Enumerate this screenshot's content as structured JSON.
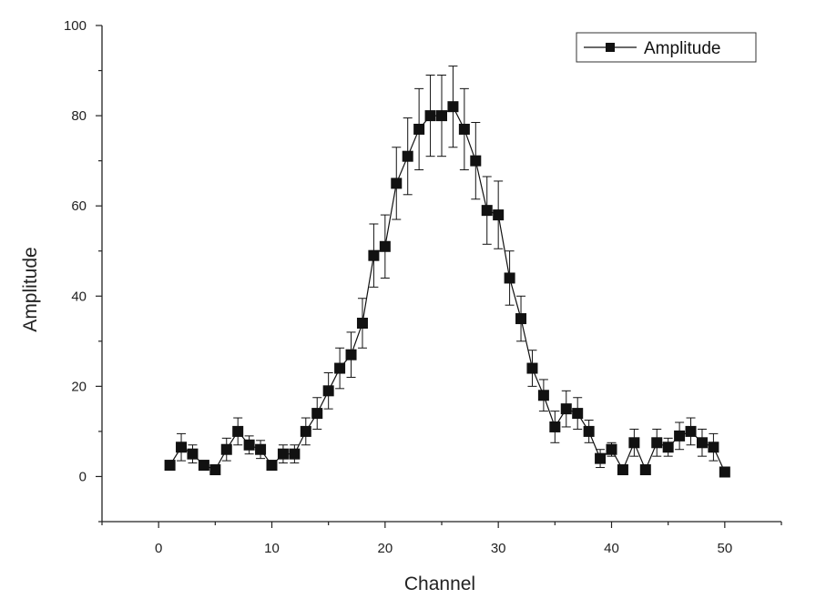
{
  "chart_data": {
    "type": "line",
    "title": "",
    "xlabel": "Channel",
    "ylabel": "Amplitude",
    "xlim": [
      -5,
      55
    ],
    "ylim": [
      -10,
      100
    ],
    "x_ticks": [
      0,
      10,
      20,
      30,
      40,
      50
    ],
    "y_ticks": [
      0,
      20,
      40,
      60,
      80,
      100
    ],
    "grid": false,
    "legend_position": "top-right",
    "marker": "square",
    "color": "#111111",
    "series": [
      {
        "name": "Amplitude",
        "x": [
          1,
          2,
          3,
          4,
          5,
          6,
          7,
          8,
          9,
          10,
          11,
          12,
          13,
          14,
          15,
          16,
          17,
          18,
          19,
          20,
          21,
          22,
          23,
          24,
          25,
          26,
          27,
          28,
          29,
          30,
          31,
          32,
          33,
          34,
          35,
          36,
          37,
          38,
          39,
          40,
          41,
          42,
          43,
          44,
          45,
          46,
          47,
          48,
          49,
          50
        ],
        "values": [
          2.5,
          6.5,
          5,
          2.5,
          1.5,
          6,
          10,
          7,
          6,
          2.5,
          5,
          5,
          10,
          14,
          19,
          24,
          27,
          34,
          49,
          51,
          65,
          71,
          77,
          80,
          80,
          82,
          77,
          70,
          59,
          58,
          44,
          35,
          24,
          18,
          11,
          15,
          14,
          10,
          4,
          6,
          1.5,
          7.5,
          1.5,
          7.5,
          6.5,
          9,
          10,
          7.5,
          6.5,
          1
        ],
        "errors": [
          1,
          3,
          2,
          1,
          1,
          2.5,
          3,
          2,
          2,
          1,
          2,
          2,
          3,
          3.5,
          4,
          4.5,
          5,
          5.5,
          7,
          7,
          8,
          8.5,
          9,
          9,
          9,
          9,
          9,
          8.5,
          7.5,
          7.5,
          6,
          5,
          4,
          3.5,
          3.5,
          4,
          3.5,
          2.5,
          2,
          1.5,
          1,
          3,
          1,
          3,
          2,
          3,
          3,
          3,
          3,
          1
        ]
      }
    ]
  }
}
